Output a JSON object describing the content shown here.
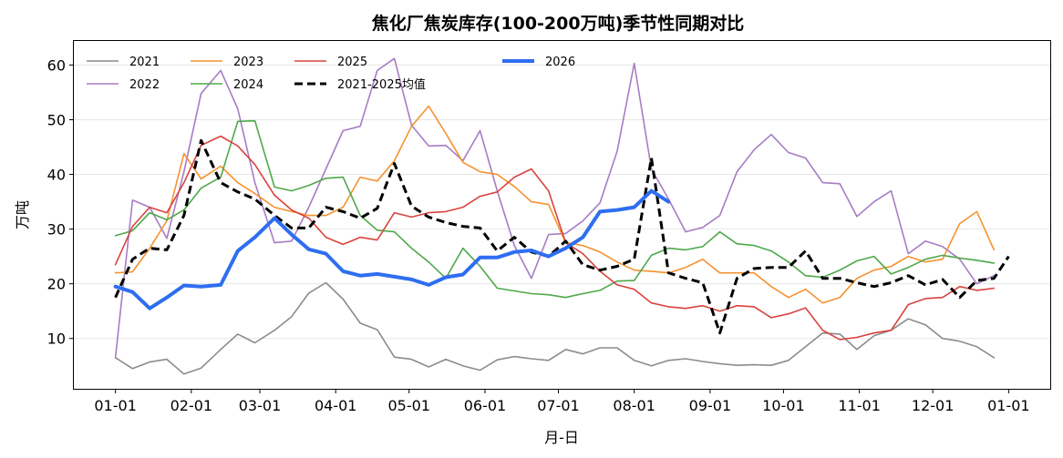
{
  "chart_data": {
    "type": "line",
    "title": "焦化厂焦炭库存(100-200万吨)季节性同期对比",
    "xlabel": "月-日",
    "ylabel": "万吨",
    "x_ticks": [
      "01-01",
      "02-01",
      "03-01",
      "04-01",
      "05-01",
      "06-01",
      "07-01",
      "08-01",
      "09-01",
      "10-01",
      "11-01",
      "12-01",
      "01-01"
    ],
    "x_tick_days": [
      0,
      31,
      59,
      90,
      120,
      151,
      181,
      212,
      243,
      273,
      304,
      334,
      365
    ],
    "xlim": [
      -17,
      382
    ],
    "ylim": [
      0.8,
      64.4
    ],
    "y_ticks": [
      10,
      20,
      30,
      40,
      50,
      60
    ],
    "grid": "horizontal",
    "legend_position": "top-left",
    "series": [
      {
        "name": "2021",
        "color": "#8c8c8c",
        "width": 1.6,
        "dash": "",
        "x": [
          0,
          7,
          14,
          21,
          28,
          35,
          43,
          50,
          57,
          65,
          72,
          79,
          86,
          93,
          100,
          107,
          114,
          121,
          128,
          135,
          142,
          149,
          156,
          163,
          170,
          177,
          184,
          191,
          198,
          205,
          212,
          219,
          226,
          233,
          240,
          247,
          254,
          261,
          268,
          275,
          282,
          289,
          296,
          303,
          310,
          317,
          324,
          331,
          338,
          345,
          352,
          359
        ],
        "y": [
          6.5,
          4.5,
          5.7,
          6.2,
          3.5,
          4.6,
          8,
          10.8,
          9.2,
          11.5,
          14,
          18.3,
          20.2,
          17.2,
          12.8,
          11.6,
          6.6,
          6.2,
          4.8,
          6.2,
          5,
          4.2,
          6.1,
          6.7,
          6.3,
          6,
          8,
          7.2,
          8.3,
          8.3,
          6,
          5,
          6,
          6.3,
          5.8,
          5.4,
          5.1,
          5.2,
          5.1,
          6,
          8.5,
          11,
          10.8,
          8,
          10.5,
          11.5,
          13.6,
          12.5,
          10,
          9.5,
          8.5,
          6.5
        ]
      },
      {
        "name": "2022",
        "color": "#a67dc4",
        "width": 1.6,
        "dash": "",
        "x": [
          0,
          7,
          14,
          21,
          28,
          35,
          43,
          50,
          57,
          65,
          72,
          79,
          86,
          93,
          100,
          107,
          114,
          121,
          128,
          135,
          142,
          149,
          156,
          163,
          170,
          177,
          184,
          191,
          198,
          205,
          212,
          219,
          226,
          233,
          240,
          247,
          254,
          261,
          268,
          275,
          282,
          289,
          296,
          303,
          310,
          317,
          324,
          331,
          338,
          345,
          352,
          359
        ],
        "y": [
          6.5,
          35.3,
          34,
          28.3,
          40.5,
          54.8,
          59,
          52,
          38.5,
          27.5,
          27.8,
          34,
          41,
          48,
          48.8,
          59,
          61.2,
          49,
          45.2,
          45.3,
          42.5,
          48,
          37,
          27,
          21,
          29,
          29.2,
          31.5,
          34.8,
          44.2,
          60.3,
          41,
          35.5,
          29.5,
          30.3,
          32.5,
          40.5,
          44.5,
          47.3,
          44,
          43,
          38.5,
          38.3,
          32.3,
          35,
          37,
          25.5,
          27.8,
          26.8,
          24.5,
          20,
          21.5
        ]
      },
      {
        "name": "2023",
        "color": "#f5922f",
        "width": 1.6,
        "dash": "",
        "x": [
          0,
          7,
          14,
          21,
          28,
          35,
          43,
          50,
          57,
          65,
          72,
          79,
          86,
          93,
          100,
          107,
          114,
          121,
          128,
          135,
          142,
          149,
          156,
          163,
          170,
          177,
          184,
          191,
          198,
          205,
          212,
          219,
          226,
          233,
          240,
          247,
          254,
          261,
          268,
          275,
          282,
          289,
          296,
          303,
          310,
          317,
          324,
          331,
          338,
          345,
          352,
          359
        ],
        "y": [
          22,
          22.2,
          26.5,
          31.5,
          43.8,
          39.2,
          41.5,
          38.5,
          36.5,
          34,
          33.2,
          32.5,
          32.5,
          34,
          39.5,
          38.8,
          42.5,
          48.8,
          52.5,
          47.5,
          42.2,
          40.5,
          40,
          37.8,
          35,
          34.5,
          27.5,
          27,
          25.8,
          24,
          22.5,
          22.3,
          22,
          23,
          24.5,
          22,
          22,
          22,
          19.5,
          17.5,
          19,
          16.5,
          17.5,
          21,
          22.5,
          23.2,
          25,
          24,
          24.5,
          31,
          33.2,
          26.2
        ]
      },
      {
        "name": "2024",
        "color": "#4ea84a",
        "width": 1.6,
        "dash": "",
        "x": [
          0,
          7,
          14,
          21,
          28,
          35,
          43,
          50,
          57,
          65,
          72,
          79,
          86,
          93,
          100,
          107,
          114,
          121,
          128,
          135,
          142,
          149,
          156,
          163,
          170,
          177,
          184,
          191,
          198,
          205,
          212,
          219,
          226,
          233,
          240,
          247,
          254,
          261,
          268,
          275,
          282,
          289,
          296,
          303,
          310,
          317,
          324,
          331,
          338,
          345,
          352,
          359
        ],
        "y": [
          28.8,
          29.7,
          33,
          31.7,
          33.5,
          37.5,
          39.5,
          49.7,
          49.8,
          37.7,
          37,
          38,
          39.3,
          39.5,
          32.5,
          29.8,
          29.5,
          26.5,
          24,
          21,
          26.5,
          23.2,
          19.2,
          18.7,
          18.2,
          18,
          17.5,
          18.2,
          18.8,
          20.5,
          20.6,
          25.2,
          26.5,
          26.2,
          26.8,
          29.5,
          27.3,
          27,
          26,
          24,
          21.5,
          21.2,
          22.5,
          24.2,
          25,
          21.8,
          23,
          24.5,
          25.2,
          24.7,
          24.3,
          23.8
        ]
      },
      {
        "name": "2025",
        "color": "#d9433d",
        "width": 1.6,
        "dash": "",
        "x": [
          0,
          7,
          14,
          21,
          28,
          35,
          43,
          50,
          57,
          65,
          72,
          79,
          86,
          93,
          100,
          107,
          114,
          121,
          128,
          135,
          142,
          149,
          156,
          163,
          170,
          177,
          184,
          191,
          198,
          205,
          212,
          219,
          226,
          233,
          240,
          247,
          254,
          261,
          268,
          275,
          282,
          289,
          296,
          303,
          310,
          317,
          324,
          331,
          338,
          345,
          352,
          359
        ],
        "y": [
          23.5,
          30.5,
          34,
          33,
          38.5,
          45.3,
          47,
          45.2,
          41.8,
          36.2,
          33.5,
          32,
          28.5,
          27.2,
          28.5,
          28,
          33,
          32.2,
          33,
          33.2,
          34,
          36,
          36.8,
          39.5,
          41,
          37,
          27.5,
          25.5,
          22.3,
          19.8,
          19,
          16.5,
          15.8,
          15.5,
          16,
          15,
          16,
          15.8,
          13.8,
          14.5,
          15.6,
          11.5,
          9.8,
          10.2,
          11,
          11.5,
          16.2,
          17.3,
          17.5,
          19.5,
          18.8,
          19.2
        ]
      },
      {
        "name": "2021-2025均值",
        "color": "#000000",
        "width": 3,
        "dash": "9,5",
        "x": [
          0,
          7,
          14,
          21,
          28,
          35,
          43,
          50,
          57,
          65,
          72,
          79,
          86,
          93,
          100,
          107,
          114,
          121,
          128,
          135,
          142,
          149,
          156,
          163,
          170,
          177,
          184,
          191,
          198,
          205,
          212,
          219,
          226,
          233,
          240,
          247,
          254,
          261,
          268,
          275,
          282,
          289,
          296,
          303,
          310,
          317,
          324,
          331,
          338,
          345,
          352,
          359,
          365
        ],
        "y": [
          17.5,
          24.5,
          26.5,
          26.2,
          32.5,
          46.2,
          38.5,
          36.8,
          35.5,
          32.5,
          30.2,
          30.2,
          34,
          33.2,
          32,
          33.8,
          42,
          34.2,
          32.2,
          31.2,
          30.5,
          30.2,
          26,
          28.5,
          25.8,
          25,
          27.8,
          23.5,
          22.5,
          23.2,
          24.5,
          43,
          22,
          21,
          20.2,
          11,
          21,
          22.8,
          23,
          23,
          26,
          21,
          21,
          20.2,
          19.5,
          20.2,
          21.5,
          19.8,
          20.8,
          17.5,
          20.6,
          21,
          25
        ]
      },
      {
        "name": "2026",
        "color": "#2e6ef0",
        "width": 4,
        "dash": "",
        "x": [
          0,
          7,
          14,
          21,
          28,
          35,
          43,
          50,
          57,
          65,
          72,
          79,
          86,
          93,
          100,
          107,
          114,
          121,
          128,
          135,
          142,
          149,
          156,
          163,
          170,
          177,
          184,
          191,
          198,
          205,
          212,
          219,
          226
        ],
        "y": [
          19.5,
          18.5,
          15.5,
          17.5,
          19.7,
          19.5,
          19.8,
          26,
          28.5,
          32,
          29,
          26.3,
          25.5,
          22.3,
          21.5,
          21.8,
          21.3,
          20.8,
          19.8,
          21.2,
          21.7,
          24.8,
          24.8,
          25.8,
          26.1,
          25,
          26.5,
          28.5,
          33.2,
          33.5,
          34,
          37,
          35
        ]
      }
    ]
  }
}
